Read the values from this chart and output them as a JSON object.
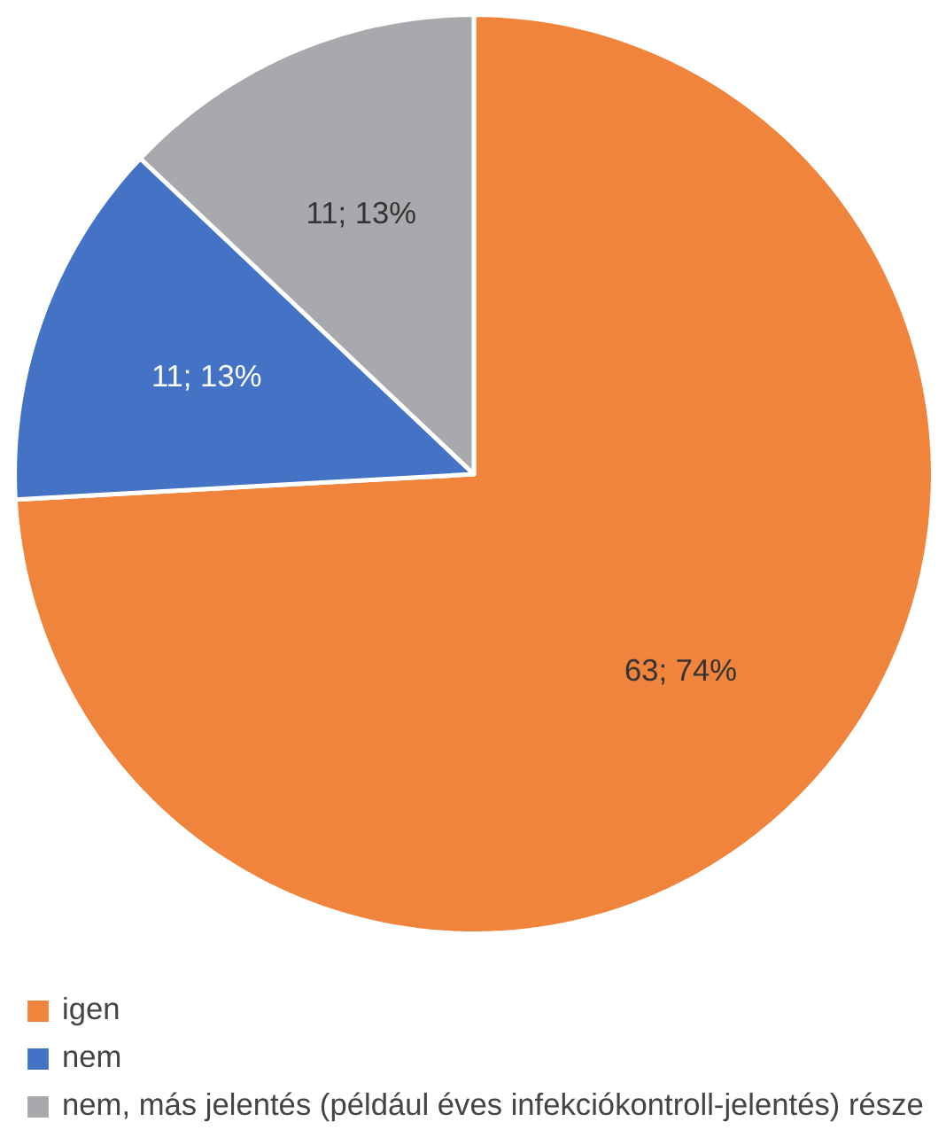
{
  "chart_data": {
    "type": "pie",
    "categories": [
      "igen",
      "nem",
      "nem, más jelentés (például éves infekciókontroll-jelentés) része"
    ],
    "values": [
      63,
      11,
      11
    ],
    "colors": [
      "#f0843c",
      "#4472c4",
      "#a8a9ad"
    ],
    "value_labels": [
      "63; 74%",
      "11; 13%",
      "11; 13%"
    ],
    "legend": "bottom"
  }
}
